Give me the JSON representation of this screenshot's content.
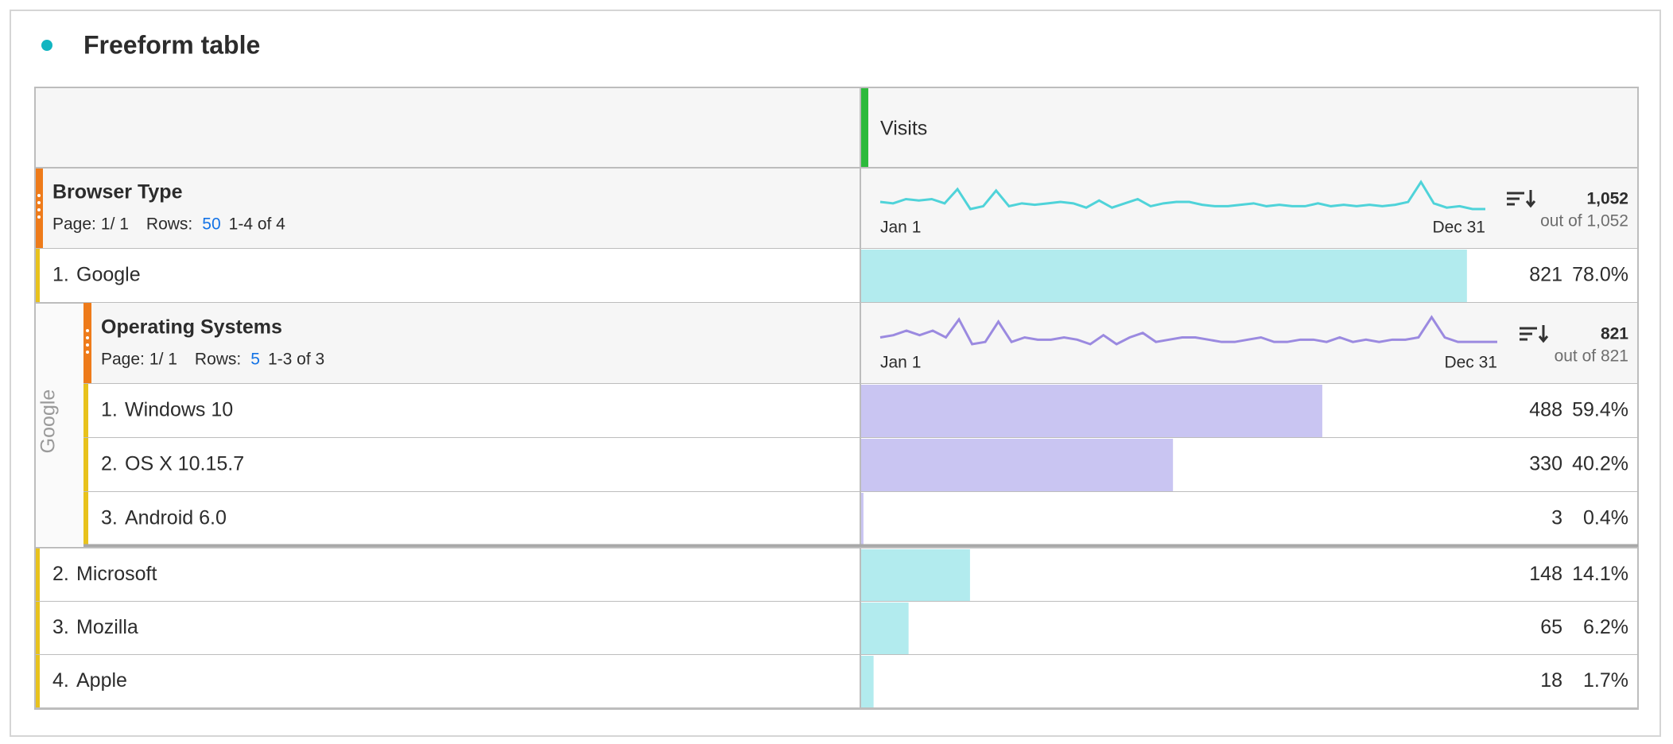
{
  "header": {
    "title": "Freeform table"
  },
  "table": {
    "metric": "Visits",
    "dimension": {
      "name": "Browser Type",
      "page_label": "Page:",
      "page": "1/ 1",
      "rows_label": "Rows:",
      "rows": 50,
      "range": "1-4 of 4"
    },
    "total": "1,052",
    "total_of": "out of 1,052",
    "sparkline": {
      "start": "Jan 1",
      "end": "Dec 31",
      "values": [
        13,
        12,
        15,
        14,
        15,
        12,
        22,
        8,
        10,
        21,
        10,
        12,
        11,
        12,
        13,
        12,
        9,
        14,
        9,
        12,
        15,
        10,
        12,
        13,
        13,
        11,
        10,
        10,
        11,
        12,
        10,
        11,
        10,
        10,
        12,
        10,
        11,
        10,
        11,
        10,
        11,
        13,
        27,
        12,
        9,
        10,
        8,
        8
      ]
    },
    "rows": [
      {
        "rank": "1.",
        "label": "Google",
        "count": 821,
        "percent": 78.0,
        "percent_label": "78.0%"
      },
      {
        "rank": "2.",
        "label": "Microsoft",
        "count": 148,
        "percent": 14.1,
        "percent_label": "14.1%"
      },
      {
        "rank": "3.",
        "label": "Mozilla",
        "count": 65,
        "percent": 6.2,
        "percent_label": "6.2%"
      },
      {
        "rank": "4.",
        "label": "Apple",
        "count": 18,
        "percent": 1.7,
        "percent_label": "1.7%"
      }
    ],
    "breakdown": {
      "parent": "Google",
      "dimension": {
        "name": "Operating Systems",
        "page_label": "Page:",
        "page": "1/ 1",
        "rows_label": "Rows:",
        "rows": 5,
        "range": "1-3 of 3"
      },
      "total": "821",
      "total_of": "out of 821",
      "sparkline": {
        "start": "Jan 1",
        "end": "Dec 31",
        "values": [
          8,
          9,
          11,
          9,
          11,
          8,
          16,
          5,
          6,
          15,
          6,
          8,
          7,
          7,
          8,
          7,
          5,
          9,
          5,
          8,
          10,
          6,
          7,
          8,
          8,
          7,
          6,
          6,
          7,
          8,
          6,
          6,
          7,
          7,
          6,
          8,
          6,
          7,
          6,
          7,
          7,
          8,
          17,
          8,
          6,
          6,
          6,
          6
        ]
      },
      "rows": [
        {
          "rank": "1.",
          "label": "Windows 10",
          "count": 488,
          "percent": 59.4,
          "percent_label": "59.4%"
        },
        {
          "rank": "2.",
          "label": "OS X 10.15.7",
          "count": 330,
          "percent": 40.2,
          "percent_label": "40.2%"
        },
        {
          "rank": "3.",
          "label": "Android 6.0",
          "count": 3,
          "percent": 0.4,
          "percent_label": "0.4%"
        }
      ]
    }
  }
}
